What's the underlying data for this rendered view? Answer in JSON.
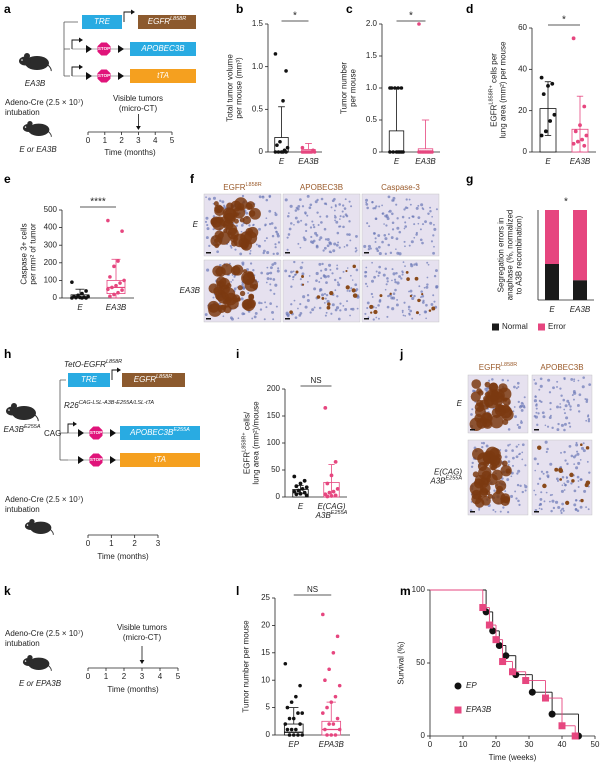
{
  "panel_labels": [
    "a",
    "b",
    "c",
    "d",
    "e",
    "f",
    "g",
    "h",
    "i",
    "j",
    "k",
    "l",
    "m"
  ],
  "a": {
    "mouse_label": "EA3B",
    "tre": "TRE",
    "egfr": {
      "main": "EGFR",
      "sup": "L858R"
    },
    "stop1": "STOP",
    "apobec": "APOBEC3B",
    "stop2": "STOP",
    "tta": "tTA",
    "adeno": [
      "Adeno-Cre (2.5 × 10⁷)",
      "intubation"
    ],
    "groups": "E or EA3B",
    "event": [
      "Visible tumors",
      "(micro-CT)"
    ],
    "timeline": [
      0,
      1,
      2,
      3,
      4,
      5
    ],
    "time_label": "Time (months)"
  },
  "f": {
    "columns": [
      {
        "main": "EGFR",
        "sup": "L858R"
      },
      "APOBEC3B",
      "Caspase-3"
    ],
    "rows": [
      "E",
      "EA3B"
    ]
  },
  "h": {
    "construct1": {
      "main": "TetO-EGFR",
      "sup": "L858R"
    },
    "tre": "TRE",
    "egfr": {
      "main": "EGFR",
      "sup": "L858R"
    },
    "construct2": {
      "main": "R26",
      "sup": "CAG-LSL-A3B-E255A/LSL-tTA"
    },
    "cag": "CAG",
    "stop1": "STOP",
    "apobec": {
      "main": "APOBEC3B",
      "sup": "E255A"
    },
    "stop2": "STOP",
    "tta": "tTA",
    "mouse_label": {
      "main": "EA3B",
      "sup": "E255A"
    },
    "adeno": [
      "Adeno-Cre (2.5 × 10⁷)",
      "intubation"
    ],
    "timeline": [
      0,
      1,
      2,
      3
    ],
    "time_label": "Time (months)"
  },
  "j": {
    "columns": [
      {
        "main": "EGFR",
        "sup": "L858R"
      },
      "APOBEC3B"
    ],
    "rows": [
      "E",
      [
        "E(CAG)",
        {
          "main": "A3B",
          "sup": "E255A"
        }
      ]
    ]
  },
  "k": {
    "adeno": [
      "Adeno-Cre (2.5 × 10⁷)",
      "intubation"
    ],
    "groups": "E or EPA3B",
    "event": [
      "Visible tumors",
      "(micro-CT)"
    ],
    "timeline": [
      0,
      1,
      2,
      3,
      4,
      5
    ],
    "time_label": "Time (months)"
  },
  "chart_data": [
    {
      "type": "box",
      "ylabel": [
        "Total tumor volume",
        "per mouse (mm³)"
      ],
      "categories": [
        "E",
        "EA3B"
      ],
      "ylim": [
        0,
        1.5
      ],
      "yticks": [
        0,
        0.5,
        {
          "value": 1,
          "label": "1.0"
        },
        1.5
      ],
      "significance": "*",
      "boxes": [
        {
          "color": "#111111",
          "q1": 0,
          "median": 0,
          "q3": 0.17,
          "whisker_low": 0,
          "whisker_high": 0.53,
          "points": [
            1.15,
            0.95,
            0.6,
            0.12,
            0.08,
            0.05,
            0.02,
            0,
            0,
            0,
            0,
            0
          ]
        },
        {
          "color": "#e6467f",
          "q1": 0,
          "median": 0,
          "q3": 0.03,
          "whisker_low": 0,
          "whisker_high": 0.1,
          "points": [
            0.05,
            0.02,
            0,
            0,
            0,
            0,
            0,
            0,
            0,
            0
          ]
        }
      ]
    },
    {
      "type": "box",
      "ylabel": [
        "Tumor number",
        "per mouse"
      ],
      "categories": [
        "E",
        "EA3B"
      ],
      "ylim": [
        0,
        2
      ],
      "yticks": [
        0,
        0.5,
        {
          "value": 1,
          "label": "1.0"
        },
        1.5,
        {
          "value": 2,
          "label": "2.0"
        }
      ],
      "significance": "*",
      "boxes": [
        {
          "color": "#111111",
          "q1": 0,
          "median": 0,
          "q3": 0.33,
          "whisker_low": 0,
          "whisker_high": 1,
          "points": [
            1,
            1,
            1,
            1,
            1,
            0,
            0,
            0,
            0,
            0,
            0,
            0
          ]
        },
        {
          "color": "#e6467f",
          "q1": 0,
          "median": 0,
          "q3": 0.05,
          "whisker_low": 0,
          "whisker_high": 0.5,
          "points": [
            2,
            0,
            0,
            0,
            0,
            0,
            0,
            0,
            0,
            0
          ]
        }
      ]
    },
    {
      "type": "bar_points",
      "ylabel": [
        {
          "main": "EGFR",
          "sup": "L858R+",
          "after": " cells per"
        },
        "lung area (mm²) per mouse"
      ],
      "categories": [
        "E",
        "EA3B"
      ],
      "ylim": [
        0,
        60
      ],
      "yticks": [
        0,
        20,
        40,
        60
      ],
      "significance": "*",
      "bars": [
        {
          "color": "#111111",
          "value": 21,
          "ci_low": 8,
          "ci_high": 34,
          "points": [
            36,
            33,
            32,
            28,
            18,
            15,
            10,
            8
          ]
        },
        {
          "color": "#e6467f",
          "value": 11,
          "ci_low": 0,
          "ci_high": 27,
          "points": [
            55,
            22,
            13,
            10,
            8,
            6,
            5,
            4,
            3
          ]
        }
      ]
    },
    {
      "type": "box",
      "ylabel": [
        "Caspase 3+ cells",
        "per mm² of tumor"
      ],
      "categories": [
        "E",
        "EA3B"
      ],
      "ylim": [
        0,
        500
      ],
      "yticks": [
        0,
        100,
        200,
        300,
        400,
        500
      ],
      "significance": "****",
      "boxes": [
        {
          "color": "#111111",
          "q1": 0,
          "median": 5,
          "q3": 18,
          "whisker_low": 0,
          "whisker_high": 50,
          "points": [
            90,
            40,
            25,
            15,
            10,
            8,
            5,
            3,
            2,
            0,
            0,
            0
          ]
        },
        {
          "color": "#e6467f",
          "q1": 25,
          "median": 60,
          "q3": 100,
          "whisker_low": 0,
          "whisker_high": 220,
          "points": [
            440,
            380,
            210,
            180,
            120,
            100,
            85,
            70,
            60,
            50,
            45,
            30,
            20,
            10
          ]
        }
      ]
    },
    {
      "type": "stacked_bar",
      "ylabel": [
        "Segregation errors in",
        "anaphase (%, normalized",
        "to A3B recombination)"
      ],
      "categories": [
        "E",
        "EA3B"
      ],
      "ylim": [
        0,
        100
      ],
      "significance": "*",
      "legend": "bottom",
      "series": [
        {
          "name": "Normal",
          "color": "#1a1a1a",
          "values": [
            40,
            22
          ]
        },
        {
          "name": "Error",
          "color": "#e6467f",
          "values": [
            60,
            78
          ]
        }
      ]
    },
    {
      "type": "bar_points",
      "ylabel": [
        {
          "main": "EGFR",
          "sup": "L858R+",
          "after": " cells/"
        },
        "lung area (mm²)/mouse"
      ],
      "categories": [
        "E",
        [
          "E(CAG)",
          {
            "main": "A3B",
            "sup": "E255A"
          }
        ]
      ],
      "ylim": [
        0,
        200
      ],
      "yticks": [
        0,
        50,
        100,
        150,
        200
      ],
      "significance": "NS",
      "bars": [
        {
          "color": "#111111",
          "value": 14,
          "ci_low": 7,
          "ci_high": 21,
          "points": [
            38,
            30,
            25,
            20,
            18,
            15,
            12,
            10,
            8,
            6,
            5,
            3
          ]
        },
        {
          "color": "#e6467f",
          "value": 27,
          "ci_low": 0,
          "ci_high": 60,
          "points": [
            165,
            65,
            40,
            25,
            15,
            10,
            8,
            5,
            3,
            2,
            1
          ]
        }
      ]
    },
    {
      "type": "box",
      "ylabel": "Tumor number per mouse",
      "categories": [
        "EP",
        "EPA3B"
      ],
      "ylim": [
        0,
        25
      ],
      "yticks": [
        0,
        5,
        10,
        15,
        20,
        25
      ],
      "significance": "NS",
      "boxes": [
        {
          "color": "#111111",
          "q1": 0,
          "median": 0.5,
          "q3": 2,
          "whisker_low": 0,
          "whisker_high": 5,
          "points": [
            13,
            9,
            7,
            6,
            5,
            4,
            4,
            3,
            3,
            2,
            2,
            1,
            1,
            1,
            0,
            0,
            0,
            0
          ]
        },
        {
          "color": "#e6467f",
          "q1": 0,
          "median": 1,
          "q3": 2.5,
          "whisker_low": 0,
          "whisker_high": 6,
          "points": [
            22,
            18,
            15,
            12,
            10,
            9,
            7,
            6,
            5,
            4,
            3,
            2,
            2,
            1,
            1,
            0,
            0,
            0
          ]
        }
      ]
    },
    {
      "type": "survival",
      "xlabel": "Time (weeks)",
      "ylabel": "Survival (%)",
      "xlim": [
        0,
        50
      ],
      "xticks": [
        0,
        10,
        20,
        30,
        40,
        50
      ],
      "ylim": [
        0,
        100
      ],
      "yticks": [
        0,
        50,
        100
      ],
      "legend": "lower left",
      "series": [
        {
          "name": "EP",
          "color": "#111111",
          "marker": "circle",
          "x": [
            0,
            17,
            19,
            21,
            23,
            26,
            31,
            37,
            45
          ],
          "values": [
            100,
            85,
            72,
            62,
            55,
            42,
            30,
            15,
            0
          ]
        },
        {
          "name": "EPA3B",
          "color": "#e6467f",
          "marker": "square",
          "x": [
            0,
            16,
            18,
            20,
            22,
            25,
            29,
            35,
            40,
            44
          ],
          "values": [
            100,
            88,
            76,
            66,
            51,
            44,
            38,
            26,
            7,
            0
          ]
        }
      ]
    }
  ]
}
